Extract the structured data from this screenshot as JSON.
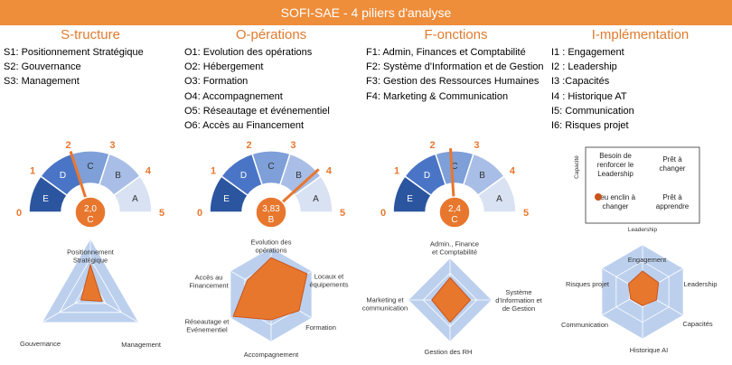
{
  "title": "SOFI-SAE - 4 piliers d'analyse",
  "colors": {
    "accent": "#e8772e",
    "banner": "#ee8d3a",
    "seg_e": "#2c55a0",
    "seg_d": "#4a75c6",
    "seg_c": "#7e9fd8",
    "seg_b": "#a8bee6",
    "seg_a": "#d9e2f3",
    "radar_bg": "#bcd0ee"
  },
  "pillars": [
    {
      "header": "S-tructure",
      "items": [
        "S1: Positionnement Stratégique",
        "S2: Gouvernance",
        "S3: Management"
      ],
      "gauge": {
        "value": "2,0",
        "grade": "C",
        "value_num": 2.0
      },
      "radar": {
        "axes": [
          "Positionnement Stratégique",
          "Gouvernance",
          "Management"
        ],
        "values": [
          0.55,
          0.25,
          0.2
        ]
      }
    },
    {
      "header": "O-pérations",
      "items": [
        "O1: Evolution des opérations",
        "O2: Hébergement",
        "O3: Formation",
        "O4: Accompagnement",
        "O5: Réseautage et événementiel",
        "O6: Accès au Financement"
      ],
      "gauge": {
        "value": "3,83",
        "grade": "B",
        "value_num": 3.83
      },
      "radar": {
        "axes": [
          "Evolution des opérations",
          "Locaux et équipements",
          "Formation",
          "Accompagnement",
          "Réseautage et Evénementiel",
          "Accès au Financement"
        ],
        "values": [
          0.8,
          0.9,
          0.7,
          0.55,
          0.95,
          0.6
        ]
      }
    },
    {
      "header": "F-onctions",
      "items": [
        "F1: Admin, Finances et Comptabilité",
        "F2: Système d'Information et de Gestion",
        "F3: Gestion des Ressources Humaines",
        "F4: Marketing & Communication"
      ],
      "gauge": {
        "value": "2,4",
        "grade": "C",
        "value_num": 2.4
      },
      "radar": {
        "axes": [
          "Admin., Finance et Comptabilité",
          "Système d'Information et de Gestion",
          "Gestion des RH",
          "Marketing et communication"
        ],
        "values": [
          0.55,
          0.5,
          0.55,
          0.45
        ]
      }
    },
    {
      "header": "I-mplémentation",
      "items": [
        "I1 : Engagement",
        "I2 : Leadership",
        "I3 :Capacités",
        "I4 : Historique AT",
        "I5: Communication",
        "I6: Risques projet"
      ],
      "matrix": {
        "cells": [
          "Besoin de renforcer le Leadership",
          "Prêt à changer",
          "Peu enclin à changer",
          "Prêt à apprendre"
        ],
        "x_label": "Leadership",
        "y_label": "Capacité"
      },
      "radar": {
        "axes": [
          "Engagement",
          "Leadership",
          "Capacités",
          "Historique AI",
          "Communication",
          "Risques projet"
        ],
        "values": [
          0.45,
          0.4,
          0.35,
          0.3,
          0.3,
          0.35
        ]
      }
    }
  ],
  "gauge_scale": [
    "0",
    "1",
    "2",
    "3",
    "4",
    "5"
  ],
  "gauge_grades": [
    "E",
    "D",
    "C",
    "B",
    "A"
  ]
}
